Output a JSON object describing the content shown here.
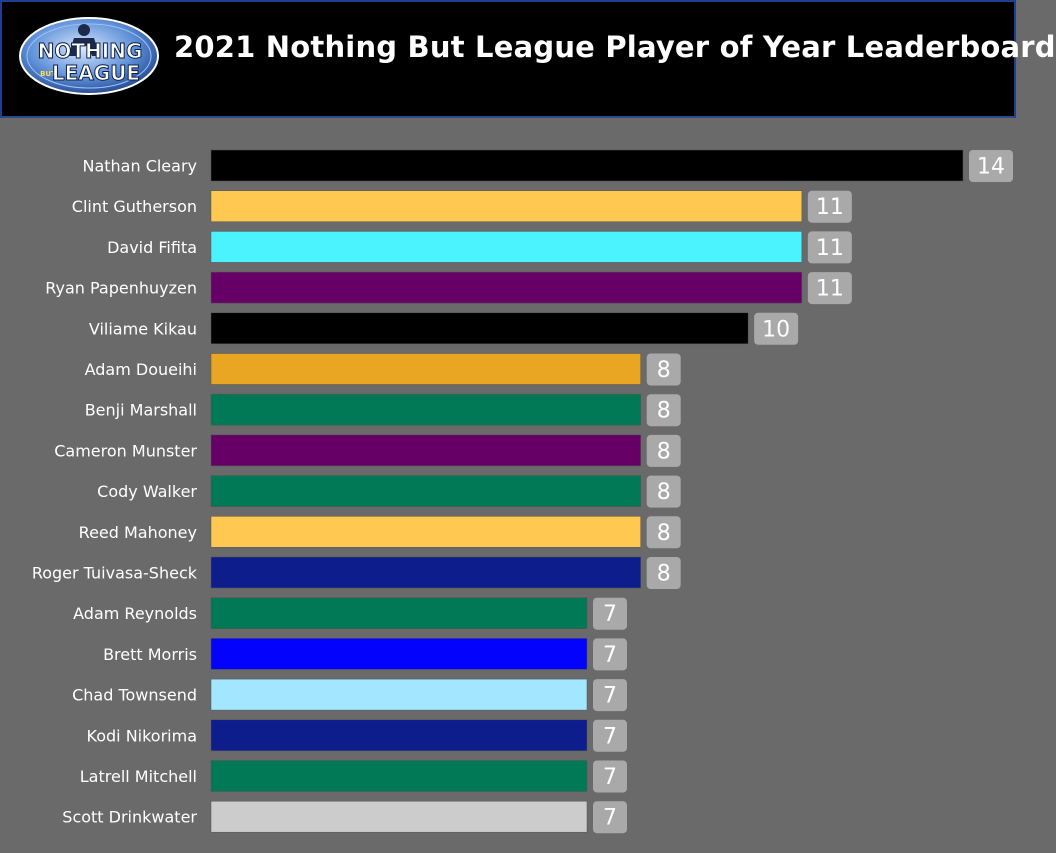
{
  "header": {
    "title": "2021 Nothing But League Player of Year Leaderboard",
    "logo": {
      "word_top": "NOTHING",
      "word_mid": "BUT",
      "word_bottom": "LEAGUE"
    }
  },
  "chart_data": {
    "type": "bar",
    "orientation": "horizontal",
    "title": "2021 Nothing But League Player of Year Leaderboard",
    "categories": [
      "Nathan Cleary",
      "Clint Gutherson",
      "David Fifita",
      "Ryan Papenhuyzen",
      "Viliame Kikau",
      "Adam Doueihi",
      "Benji Marshall",
      "Cameron Munster",
      "Cody Walker",
      "Reed Mahoney",
      "Roger Tuivasa-Sheck",
      "Adam Reynolds",
      "Brett Morris",
      "Chad Townsend",
      "Kodi Nikorima",
      "Latrell Mitchell",
      "Scott Drinkwater"
    ],
    "values": [
      14,
      11,
      11,
      11,
      10,
      8,
      8,
      8,
      8,
      8,
      8,
      7,
      7,
      7,
      7,
      7,
      7
    ],
    "colors": [
      "#000000",
      "#ffc951",
      "#4af3ff",
      "#660066",
      "#000000",
      "#e8a623",
      "#027956",
      "#660066",
      "#027956",
      "#ffc951",
      "#0e1d8c",
      "#027956",
      "#0202fd",
      "#a2e6ff",
      "#0e1d8c",
      "#027956",
      "#cccccc"
    ],
    "xlim": [
      0,
      14
    ],
    "xlabel": "",
    "ylabel": "",
    "grid": false,
    "legend": "none",
    "data_labels": true
  }
}
